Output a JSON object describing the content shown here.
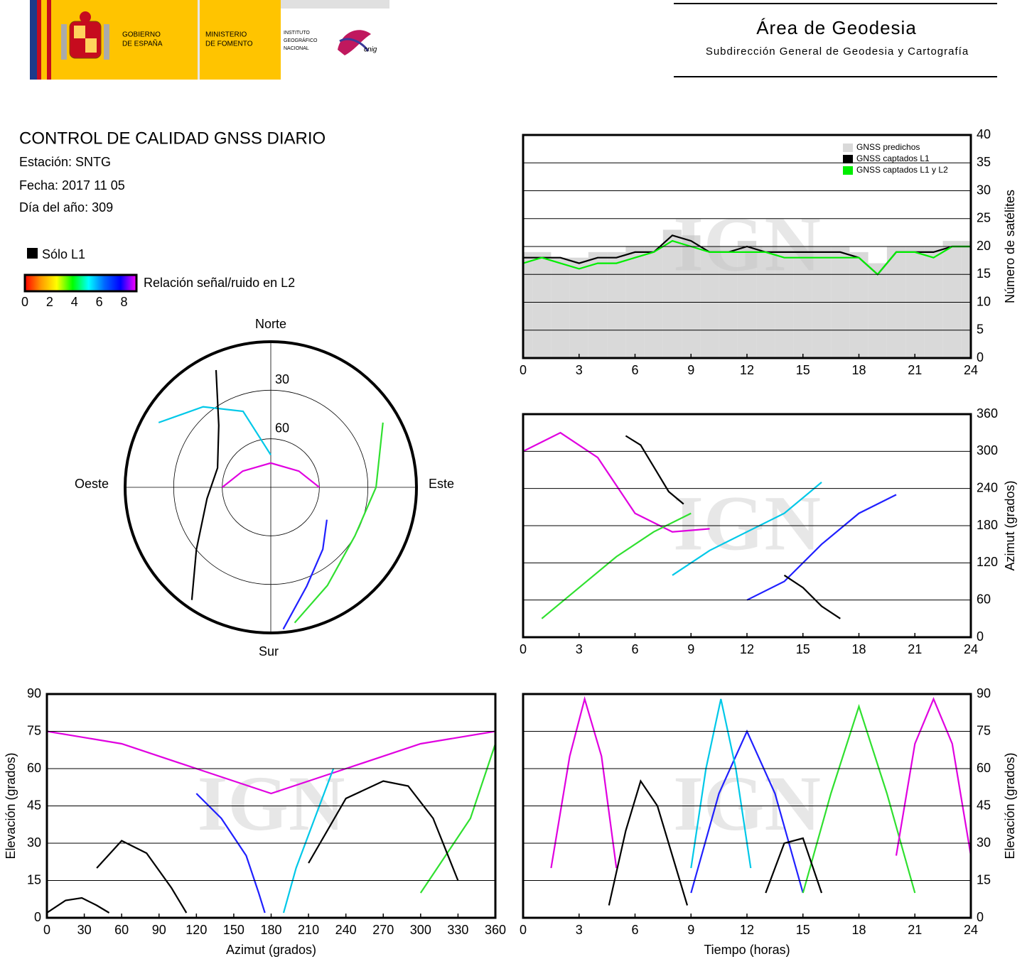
{
  "header": {
    "government": [
      "GOBIERNO",
      "DE ESPAÑA"
    ],
    "ministry": [
      "MINISTERIO",
      "DE FOMENTO"
    ],
    "institute": [
      "INSTITUTO",
      "GEOGRÁFICO",
      "NACIONAL"
    ],
    "cnig": "cnig",
    "area": "Área de Geodesia",
    "subarea": "Subdirección General de Geodesia y Cartografía"
  },
  "report": {
    "title": "CONTROL DE CALIDAD GNSS DIARIO",
    "station": "Estación: SNTG",
    "date": "Fecha: 2017 11 05",
    "doy": "Día del año: 309",
    "only_l1": "Sólo L1",
    "colorbar_label": "Relación señal/ruido en L2",
    "colorbar_lim": [
      0,
      9
    ],
    "colorbar_ticks": [
      0,
      2,
      4,
      6,
      8
    ],
    "colorbar_colors": [
      "#ff0000",
      "#ff9900",
      "#ffff00",
      "#00ff00",
      "#00ffff",
      "#0066ff",
      "#0000ff",
      "#ff00ff"
    ]
  },
  "watermark": "IGN",
  "chart_data": [
    {
      "type": "line",
      "ylabel": "Número de satélites",
      "x": [
        0,
        1,
        2,
        3,
        4,
        5,
        6,
        7,
        8,
        9,
        10,
        11,
        12,
        13,
        14,
        15,
        16,
        17,
        18,
        19,
        20,
        21,
        22,
        23,
        24
      ],
      "xlim": [
        0,
        24
      ],
      "xticks": [
        0,
        3,
        6,
        9,
        12,
        15,
        18,
        21,
        24
      ],
      "ylim": [
        0,
        40
      ],
      "yticks": [
        0,
        5,
        10,
        15,
        20,
        25,
        30,
        35,
        40
      ],
      "grid": true,
      "legend": "top-right",
      "series": [
        {
          "name": "GNSS predichos",
          "color": "#d9d9d9",
          "mark": "bar",
          "values": [
            19,
            19,
            18,
            18,
            19,
            19,
            20,
            20,
            23,
            22,
            20,
            20,
            21,
            20,
            20,
            20,
            20,
            20,
            19,
            17,
            20,
            20,
            20,
            21,
            21
          ]
        },
        {
          "name": "GNSS captados L1",
          "color": "#000000",
          "mark": "line",
          "values": [
            18,
            18,
            18,
            17,
            18,
            18,
            19,
            19,
            22,
            21,
            19,
            19,
            20,
            19,
            19,
            19,
            19,
            19,
            18,
            15,
            19,
            19,
            19,
            20,
            20
          ]
        },
        {
          "name": "GNSS captados L1 y L2",
          "color": "#00ee00",
          "mark": "line",
          "values": [
            17,
            18,
            17,
            16,
            17,
            17,
            18,
            19,
            21,
            20,
            19,
            19,
            19,
            19,
            18,
            18,
            18,
            18,
            18,
            15,
            19,
            19,
            18,
            20,
            20
          ]
        }
      ]
    },
    {
      "type": "line",
      "ylabel": "Azimut (grados)",
      "xlim": [
        0,
        24
      ],
      "xticks": [
        0,
        3,
        6,
        9,
        12,
        15,
        18,
        21,
        24
      ],
      "ylim": [
        0,
        360
      ],
      "yticks": [
        0,
        60,
        120,
        180,
        240,
        300,
        360
      ],
      "grid": true,
      "series": [
        {
          "color": "#000000",
          "x": [
            5.5,
            6.3,
            7,
            7.8,
            8.6
          ],
          "values": [
            325,
            310,
            275,
            235,
            215
          ]
        },
        {
          "color": "#e000e0",
          "x": [
            0,
            2,
            4,
            6,
            8,
            10
          ],
          "values": [
            300,
            330,
            290,
            200,
            170,
            175
          ]
        },
        {
          "color": "#2020ff",
          "x": [
            12,
            14,
            16,
            18,
            20
          ],
          "values": [
            60,
            90,
            150,
            200,
            230
          ]
        },
        {
          "color": "#00c8e8",
          "x": [
            8,
            10,
            12,
            14,
            16
          ],
          "values": [
            100,
            140,
            170,
            200,
            250
          ]
        },
        {
          "color": "#30e030",
          "x": [
            1,
            3,
            5,
            7,
            9
          ],
          "values": [
            30,
            80,
            130,
            170,
            200
          ]
        },
        {
          "color": "#000000",
          "x": [
            14,
            15,
            16,
            17
          ],
          "values": [
            100,
            80,
            50,
            30
          ]
        }
      ]
    },
    {
      "type": "line",
      "xlabel": "Azimut (grados)",
      "ylabel": "Elevación (grados)",
      "xlim": [
        0,
        360
      ],
      "xticks": [
        0,
        30,
        60,
        90,
        120,
        150,
        180,
        210,
        240,
        270,
        300,
        330,
        360
      ],
      "ylim": [
        0,
        90
      ],
      "yticks": [
        0,
        15,
        30,
        45,
        60,
        75,
        90
      ],
      "grid": true,
      "series": [
        {
          "color": "#e000e0",
          "x": [
            0,
            60,
            120,
            180,
            240,
            300,
            360
          ],
          "values": [
            75,
            70,
            60,
            50,
            60,
            70,
            75
          ]
        },
        {
          "color": "#2020ff",
          "x": [
            120,
            140,
            160,
            170,
            175
          ],
          "values": [
            50,
            40,
            25,
            10,
            2
          ]
        },
        {
          "color": "#00c8e8",
          "x": [
            190,
            200,
            215,
            230
          ],
          "values": [
            2,
            20,
            40,
            60
          ]
        },
        {
          "color": "#30e030",
          "x": [
            300,
            320,
            340,
            360
          ],
          "values": [
            10,
            25,
            40,
            70
          ]
        },
        {
          "color": "#000000",
          "x": [
            0,
            15,
            28,
            40,
            50
          ],
          "values": [
            2,
            7,
            8,
            5,
            2
          ]
        },
        {
          "color": "#000000",
          "x": [
            40,
            60,
            80,
            100,
            112
          ],
          "values": [
            20,
            31,
            26,
            12,
            2
          ]
        },
        {
          "color": "#000000",
          "x": [
            210,
            240,
            270,
            290,
            310,
            330
          ],
          "values": [
            22,
            48,
            55,
            53,
            40,
            15
          ]
        }
      ]
    },
    {
      "type": "line",
      "xlabel": "Tiempo (horas)",
      "ylabel": "Elevación (grados)",
      "xlim": [
        0,
        24
      ],
      "xticks": [
        0,
        3,
        6,
        9,
        12,
        15,
        18,
        21,
        24
      ],
      "ylim": [
        0,
        90
      ],
      "yticks": [
        0,
        15,
        30,
        45,
        60,
        75,
        90
      ],
      "grid": true,
      "series": [
        {
          "color": "#e000e0",
          "x": [
            1.5,
            2.5,
            3.3,
            4.2,
            5
          ],
          "values": [
            20,
            65,
            88,
            65,
            20
          ]
        },
        {
          "color": "#2020ff",
          "x": [
            9,
            10.5,
            12,
            13.5,
            15
          ],
          "values": [
            10,
            50,
            75,
            50,
            10
          ]
        },
        {
          "color": "#00c8e8",
          "x": [
            9,
            9.8,
            10.6,
            11.4,
            12.2
          ],
          "values": [
            20,
            60,
            88,
            60,
            20
          ]
        },
        {
          "color": "#30e030",
          "x": [
            15,
            16.5,
            18,
            19.5,
            21
          ],
          "values": [
            10,
            50,
            85,
            50,
            10
          ]
        },
        {
          "color": "#e000e0",
          "x": [
            20,
            21,
            22,
            23,
            24
          ],
          "values": [
            25,
            70,
            88,
            70,
            25
          ]
        },
        {
          "color": "#000000",
          "x": [
            4.6,
            5.5,
            6.3,
            7.2,
            8,
            8.8
          ],
          "values": [
            5,
            35,
            55,
            45,
            25,
            5
          ]
        },
        {
          "color": "#000000",
          "x": [
            13,
            14,
            15,
            16
          ],
          "values": [
            10,
            30,
            32,
            10
          ]
        }
      ]
    },
    {
      "type": "polar",
      "labels": {
        "north": "Norte",
        "south": "Sur",
        "east": "Este",
        "west": "Oeste"
      },
      "rlim": [
        90,
        0
      ],
      "rticks": [
        30,
        60
      ],
      "series": [
        {
          "color": "#e000e0",
          "azimuth": [
            270,
            300,
            0,
            60,
            90
          ],
          "values": [
            60,
            70,
            75,
            70,
            60
          ]
        },
        {
          "color": "#2020ff",
          "azimuth": [
            120,
            140,
            160,
            175
          ],
          "values": [
            50,
            40,
            25,
            2
          ]
        },
        {
          "color": "#00c8e8",
          "azimuth": [
            300,
            320,
            340,
            360
          ],
          "values": [
            10,
            25,
            40,
            70
          ]
        },
        {
          "color": "#30e030",
          "azimuth": [
            60,
            90,
            120,
            150,
            170
          ],
          "values": [
            10,
            25,
            30,
            20,
            5
          ]
        },
        {
          "color": "#000000",
          "azimuth": [
            215,
            230,
            260,
            290,
            320,
            335
          ],
          "values": [
            5,
            30,
            50,
            55,
            40,
            10
          ]
        }
      ]
    }
  ]
}
